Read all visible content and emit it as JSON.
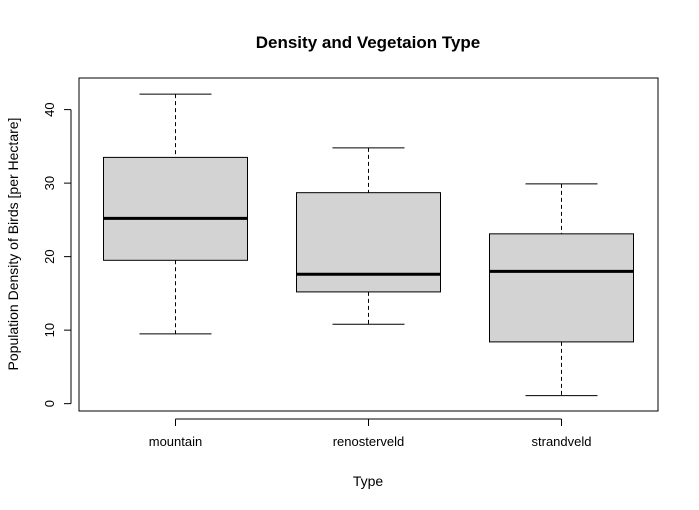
{
  "chart_data": {
    "type": "boxplot",
    "title": "Density and Vegetaion Type",
    "xlabel": "Type",
    "ylabel": "Population Density of Birds [per Hectare]",
    "categories": [
      "mountain",
      "renosterveld",
      "strandveld"
    ],
    "boxes": [
      {
        "category": "mountain",
        "min": 9.5,
        "q1": 19.5,
        "median": 25.2,
        "q3": 33.5,
        "max": 42.1
      },
      {
        "category": "renosterveld",
        "min": 10.8,
        "q1": 15.2,
        "median": 17.6,
        "q3": 28.7,
        "max": 34.8
      },
      {
        "category": "strandveld",
        "min": 1.1,
        "q1": 8.4,
        "median": 18.0,
        "q3": 23.1,
        "max": 29.9
      }
    ],
    "y_ticks": [
      0,
      10,
      20,
      30,
      40
    ],
    "ylim": [
      -1.0,
      44.3
    ],
    "box_fill": "#d3d3d3",
    "grid": false
  }
}
